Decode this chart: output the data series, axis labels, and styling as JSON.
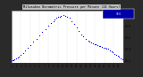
{
  "title": "Milwaukee Barometric Pressure per Minute (24 Hours)",
  "bg_color": "#c0c0c0",
  "plot_bg": "#ffffff",
  "outer_bg": "#404040",
  "dot_color": "#0000ff",
  "legend_bg": "#0000aa",
  "legend_text": "30.0",
  "ylim": [
    29.15,
    30.08
  ],
  "xlim": [
    0,
    1440
  ],
  "yticks": [
    29.2,
    29.4,
    29.6,
    29.8,
    30.0
  ],
  "ytick_labels": [
    "29.2",
    "29.4",
    "29.6",
    "29.8",
    "30.0"
  ],
  "vgrid_positions": [
    120,
    240,
    360,
    480,
    600,
    720,
    840,
    960,
    1080,
    1200,
    1320
  ],
  "xtick_positions": [
    0,
    60,
    120,
    180,
    240,
    300,
    360,
    420,
    480,
    540,
    600,
    660,
    720,
    780,
    840,
    900,
    960,
    1020,
    1080,
    1140,
    1200,
    1260,
    1320,
    1380
  ],
  "xtick_labels": [
    "0",
    "1",
    "2",
    "3",
    "4",
    "5",
    "6",
    "7",
    "8",
    "9",
    "10",
    "11",
    "12",
    "13",
    "14",
    "15",
    "16",
    "17",
    "18",
    "19",
    "20",
    "21",
    "22",
    "23"
  ],
  "data_x": [
    10,
    20,
    40,
    60,
    80,
    100,
    120,
    150,
    180,
    210,
    240,
    280,
    320,
    360,
    400,
    440,
    480,
    510,
    540,
    560,
    580,
    600,
    620,
    640,
    670,
    700,
    720,
    750,
    780,
    810,
    840,
    870,
    900,
    930,
    960,
    990,
    1010,
    1030,
    1050,
    1070,
    1090,
    1110,
    1130,
    1150,
    1170,
    1190,
    1210,
    1230,
    1250,
    1270,
    1290,
    1310,
    1330,
    1350,
    1370,
    1390,
    1410,
    1430
  ],
  "data_y": [
    29.2,
    29.21,
    29.22,
    29.24,
    29.25,
    29.27,
    29.29,
    29.33,
    29.38,
    29.42,
    29.47,
    29.53,
    29.58,
    29.64,
    29.7,
    29.76,
    29.82,
    29.86,
    29.9,
    29.92,
    29.95,
    29.97,
    29.98,
    29.99,
    30.0,
    29.99,
    29.98,
    29.95,
    29.9,
    29.84,
    29.78,
    29.72,
    29.66,
    29.62,
    29.58,
    29.55,
    29.53,
    29.51,
    29.5,
    29.49,
    29.48,
    29.47,
    29.46,
    29.45,
    29.44,
    29.43,
    29.42,
    29.41,
    29.4,
    29.38,
    29.36,
    29.34,
    29.32,
    29.3,
    29.28,
    29.26,
    29.24,
    29.22
  ]
}
